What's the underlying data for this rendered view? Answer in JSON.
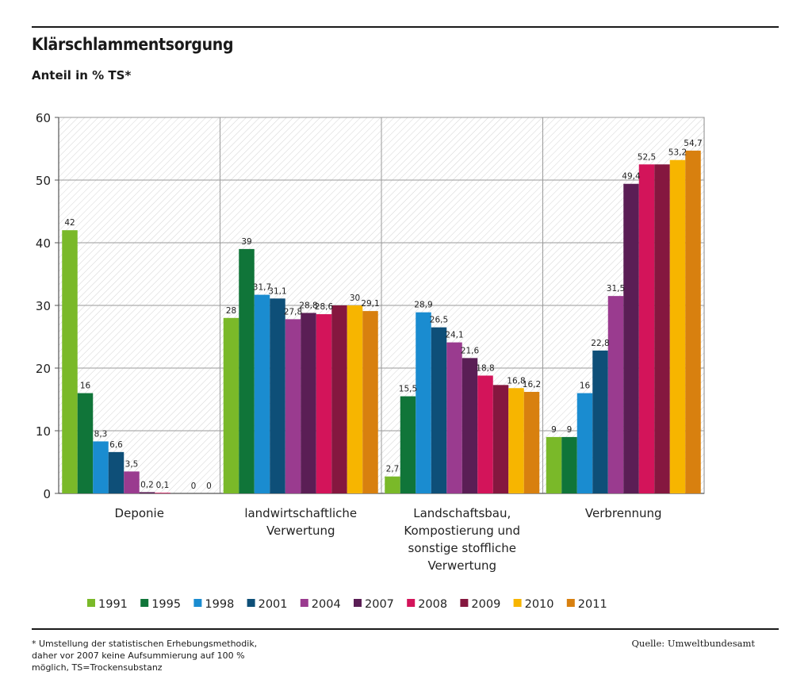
{
  "title": "Klärschlammentsorgung",
  "subtitle": "Anteil in % TS*",
  "footnote": [
    "* Umstellung der statistischen Erhebungsmethodik,",
    "daher vor 2007 keine Aufsummierung auf 100 %",
    "möglich, TS=Trockensubstanz"
  ],
  "source": "Quelle: Umweltbundesamt",
  "chart_data": {
    "type": "bar",
    "categories": [
      [
        "Deponie"
      ],
      [
        "landwirtschaftliche",
        "Verwertung"
      ],
      [
        "Landschaftsbau,",
        "Kompostierung und",
        "sonstige stoffliche",
        "Verwertung"
      ],
      [
        "Verbrennung"
      ]
    ],
    "series": [
      {
        "name": "1991",
        "color": "#7ab929",
        "values": [
          42,
          28,
          2.7,
          9
        ],
        "labels": [
          "42",
          "28",
          "2,7",
          "9"
        ]
      },
      {
        "name": "1995",
        "color": "#107539",
        "values": [
          16,
          39,
          15.5,
          9
        ],
        "labels": [
          "16",
          "39",
          "15,5",
          "9"
        ]
      },
      {
        "name": "1998",
        "color": "#1a8cd0",
        "values": [
          8.3,
          31.7,
          28.9,
          16
        ],
        "labels": [
          "8,3",
          "31,7",
          "28,9",
          "16"
        ]
      },
      {
        "name": "2001",
        "color": "#0e4f78",
        "values": [
          6.6,
          31.1,
          26.5,
          22.8
        ],
        "labels": [
          "6,6",
          "31,1",
          "26,5",
          "22,8"
        ]
      },
      {
        "name": "2004",
        "color": "#9a3b8f",
        "values": [
          3.5,
          27.8,
          24.1,
          31.5
        ],
        "labels": [
          "3,5",
          "27,8",
          "24,1",
          "31,5"
        ]
      },
      {
        "name": "2007",
        "color": "#5a1e55",
        "values": [
          0.2,
          28.8,
          21.6,
          49.4
        ],
        "labels": [
          "0,2",
          "28,8",
          "21,6",
          "49,4"
        ]
      },
      {
        "name": "2008",
        "color": "#d3145a",
        "values": [
          0.1,
          28.6,
          18.8,
          52.5
        ],
        "labels": [
          "0,1",
          "28,6",
          "18,8",
          "52,5"
        ]
      },
      {
        "name": "2009",
        "color": "#85173f",
        "values": [
          0,
          30,
          17.3,
          52.5
        ],
        "labels": [
          "",
          "",
          "",
          ""
        ]
      },
      {
        "name": "2010",
        "color": "#f7b500",
        "values": [
          0,
          30,
          16.8,
          53.2
        ],
        "labels": [
          "0",
          "30",
          "16,8",
          "53,2"
        ]
      },
      {
        "name": "2011",
        "color": "#d8800f",
        "values": [
          0,
          29.1,
          16.2,
          54.7
        ],
        "labels": [
          "0",
          "29,1",
          "16,2",
          "54,7"
        ]
      }
    ],
    "ylim": [
      0,
      60
    ],
    "yticks": [
      0,
      10,
      20,
      30,
      40,
      50,
      60
    ],
    "grid": true,
    "legend": "bottom"
  }
}
